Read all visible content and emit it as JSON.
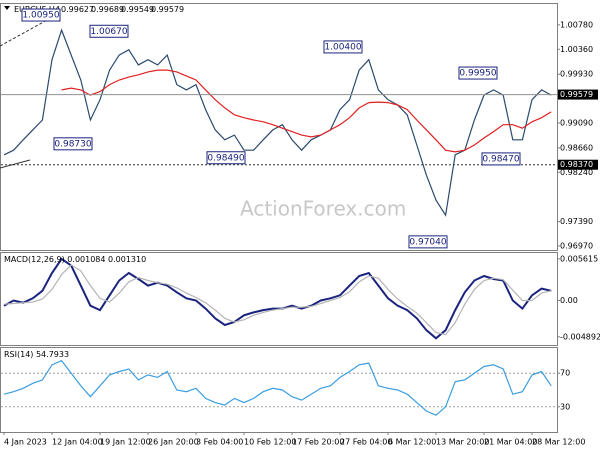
{
  "header": {
    "symbol": "EURCHF,H4",
    "ohlc": [
      0.99627,
      0.99689,
      0.99549,
      0.99579
    ]
  },
  "watermark": "ActionForex.com",
  "chart_data": [
    {
      "type": "line",
      "categories": [
        "4 Jan 2023",
        null,
        null,
        null,
        null,
        "12 Jan 04:00",
        null,
        null,
        null,
        null,
        "19 Jan 12:00",
        null,
        null,
        null,
        null,
        "26 Jan 20:00",
        null,
        null,
        null,
        null,
        "3 Feb 04:00",
        null,
        null,
        null,
        null,
        "10 Feb 12:00",
        null,
        null,
        null,
        null,
        "17 Feb 20:00",
        null,
        null,
        null,
        null,
        "27 Feb 04:00",
        null,
        null,
        null,
        null,
        "6 Mar 12:00",
        null,
        null,
        null,
        null,
        "13 Mar 20:00",
        null,
        null,
        null,
        null,
        "21 Mar 04:00",
        null,
        null,
        null,
        null,
        "28 Mar 12:00",
        null,
        null
      ],
      "series": [
        {
          "color": "#2b4a6e",
          "values": [
            0.9854,
            0.9862,
            0.988,
            0.9897,
            0.9914,
            1.0018,
            1.0069,
            1.0026,
            0.9983,
            0.9914,
            0.9949,
            1.0,
            1.0026,
            1.0035,
            1.0009,
            1.0018,
            1.0009,
            1.0026,
            0.9975,
            0.9966,
            0.9975,
            0.9932,
            0.9897,
            0.988,
            0.9888,
            0.9862,
            0.9862,
            0.988,
            0.9897,
            0.9906,
            0.988,
            0.9862,
            0.988,
            0.9888,
            0.9897,
            0.9932,
            0.9949,
            1.0,
            1.0018,
            0.9966,
            0.9949,
            0.994,
            0.9923,
            0.9871,
            0.9819,
            0.9776,
            0.975,
            0.9854,
            0.9862,
            0.9914,
            0.9957,
            0.9966,
            0.9957,
            0.988,
            0.988,
            0.9949,
            0.9966,
            0.9957
          ]
        },
        {
          "color": "#e02020",
          "values": [
            null,
            null,
            null,
            null,
            null,
            null,
            0.9966,
            0.9969,
            0.9966,
            0.9957,
            0.9963,
            0.9975,
            0.9983,
            0.9988,
            0.9992,
            0.9997,
            1.0,
            1.0,
            0.9997,
            0.999,
            0.9983,
            0.9966,
            0.9949,
            0.9935,
            0.9923,
            0.9918,
            0.9914,
            0.9911,
            0.9906,
            0.99,
            0.9894,
            0.9888,
            0.9885,
            0.9888,
            0.9897,
            0.9906,
            0.9918,
            0.9935,
            0.9944,
            0.9945,
            0.9944,
            0.994,
            0.9932,
            0.9914,
            0.9897,
            0.988,
            0.9862,
            0.9859,
            0.9862,
            0.9871,
            0.9883,
            0.9894,
            0.9906,
            0.9906,
            0.99,
            0.9911,
            0.9918,
            0.9928
          ]
        }
      ],
      "ylim": [
        0.969,
        1.0114
      ],
      "yticks": [
        {
          "value": 1.0078,
          "label": "1.00780"
        },
        {
          "value": 1.0036,
          "label": "1.00360"
        },
        {
          "value": 0.9993,
          "label": "0.99930"
        },
        {
          "value": 0.9909,
          "label": "0.99090"
        },
        {
          "value": 0.9866,
          "label": "0.98660"
        },
        {
          "value": 0.9824,
          "label": "0.98240"
        },
        {
          "value": 0.9739,
          "label": "0.97390"
        },
        {
          "value": 0.9697,
          "label": "0.96970"
        }
      ],
      "last_price": 0.99579,
      "level": {
        "value": 0.9837,
        "label": "0.98370"
      },
      "annotations": [
        {
          "value": 1.0095,
          "label": "1.00950"
        },
        {
          "value": 1.0067,
          "label": "1.00670"
        },
        {
          "value": 0.9873,
          "label": "0.98730"
        },
        {
          "value": 0.9849,
          "label": "0.98490"
        },
        {
          "value": 1.004,
          "label": "1.00400"
        },
        {
          "value": 0.9704,
          "label": "0.97040"
        },
        {
          "value": 0.9995,
          "label": "0.99950"
        },
        {
          "value": 0.9847,
          "label": "0.98470"
        }
      ],
      "grid": false
    },
    {
      "type": "line",
      "title": "MACD(12,26,9)",
      "readout": [
        0.001084,
        {
          "value": 0.00131,
          "label": "0.001310"
        }
      ],
      "series": [
        {
          "color": "#1a237e",
          "values": [
            -0.0007,
            0,
            -0.0003,
            0.0003,
            0.0013,
            0.0037,
            0.0056,
            0.0047,
            0.002,
            -0.0007,
            -0.0013,
            0.0007,
            0.0027,
            0.0037,
            0.0029,
            0.002,
            0.0024,
            0.002,
            0.0011,
            0.0003,
            0,
            -0.0011,
            -0.0024,
            -0.0033,
            -0.0029,
            -0.002,
            -0.0016,
            -0.0013,
            -0.0011,
            -0.0011,
            -0.0007,
            -0.0011,
            -0.0007,
            0,
            0.0003,
            0.0007,
            0.002,
            0.0033,
            0.0037,
            0.002,
            0.0003,
            -0.0007,
            -0.0013,
            -0.0024,
            -0.004,
            -0.0051,
            -0.004,
            -0.0013,
            0.0011,
            0.0027,
            0.0033,
            0.0029,
            0.0027,
            0,
            -0.0011,
            0.0007,
            0.0016,
            0.0013
          ]
        },
        {
          "color": "#b4b4b4",
          "values": [
            -0.0005,
            -0.0004,
            -0.0003,
            -0.0002,
            0.0002,
            0.0015,
            0.0035,
            0.0048,
            0.004,
            0.002,
            0.0003,
            -0.0002,
            0.001,
            0.0025,
            0.0031,
            0.0027,
            0.0024,
            0.0022,
            0.0017,
            0.001,
            0.0004,
            -0.0003,
            -0.0013,
            -0.0024,
            -0.0029,
            -0.0026,
            -0.002,
            -0.0016,
            -0.0013,
            -0.0011,
            -0.0009,
            -0.0009,
            -0.0008,
            -0.0004,
            0,
            0.0004,
            0.0012,
            0.0025,
            0.0033,
            0.003,
            0.0015,
            0.0002,
            -0.0008,
            -0.0017,
            -0.003,
            -0.0043,
            -0.0046,
            -0.003,
            -0.0005,
            0.0015,
            0.0027,
            0.003,
            0.0028,
            0.0014,
            0,
            0,
            0.001,
            0.0013
          ]
        }
      ],
      "ylim": [
        -0.006,
        0.0064
      ],
      "yticks": [
        0.005615,
        {
          "value": 0,
          "label": "0.00"
        },
        -0.004892
      ],
      "grid": false
    },
    {
      "type": "line",
      "title": "RSI(14)",
      "readout": [
        54.7933
      ],
      "series": [
        {
          "color": "#3a9ee0",
          "values": [
            45,
            48,
            52,
            58,
            62,
            80,
            85,
            70,
            55,
            42,
            55,
            68,
            72,
            75,
            62,
            68,
            65,
            72,
            50,
            48,
            52,
            40,
            35,
            32,
            40,
            35,
            40,
            48,
            52,
            50,
            42,
            38,
            45,
            52,
            55,
            65,
            72,
            80,
            82,
            55,
            52,
            50,
            45,
            35,
            25,
            20,
            30,
            60,
            62,
            70,
            78,
            80,
            75,
            45,
            48,
            68,
            72,
            55
          ]
        }
      ],
      "ylim": [
        0,
        100
      ],
      "yticks": [
        70,
        30
      ],
      "grid": true
    }
  ]
}
